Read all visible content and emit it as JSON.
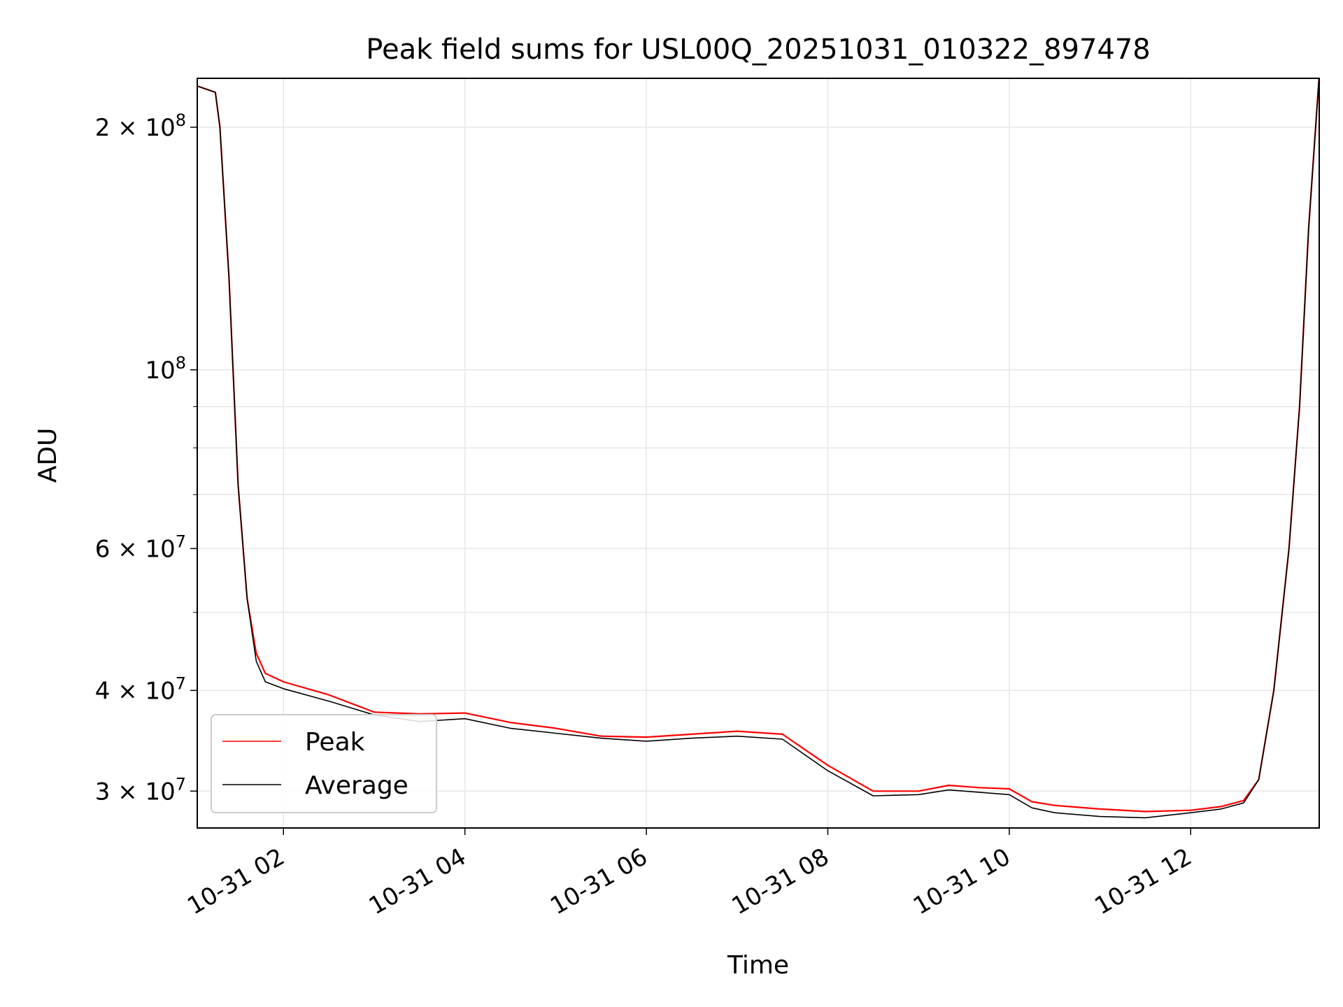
{
  "chart_data": {
    "type": "line",
    "title": "Peak field sums for USL00Q_20251031_010322_897478",
    "xlabel": "Time",
    "ylabel": "ADU",
    "yscale": "log",
    "xlim": [
      "2025-10-31T01:03",
      "2025-10-31T13:25"
    ],
    "ylim": [
      27000000,
      230000000
    ],
    "grid": true,
    "legend_position": "lower-left",
    "x_ticks": [
      {
        "t": "2025-10-31T02:00",
        "label": "10-31 02"
      },
      {
        "t": "2025-10-31T04:00",
        "label": "10-31 04"
      },
      {
        "t": "2025-10-31T06:00",
        "label": "10-31 06"
      },
      {
        "t": "2025-10-31T08:00",
        "label": "10-31 08"
      },
      {
        "t": "2025-10-31T10:00",
        "label": "10-31 10"
      },
      {
        "t": "2025-10-31T12:00",
        "label": "10-31 12"
      }
    ],
    "y_ticks": [
      {
        "v": 30000000,
        "base": "3",
        "exp": "7"
      },
      {
        "v": 40000000,
        "base": "4",
        "exp": "7"
      },
      {
        "v": 60000000,
        "base": "6",
        "exp": "7"
      },
      {
        "v": 100000000,
        "base": "",
        "exp": "8"
      },
      {
        "v": 200000000,
        "base": "2",
        "exp": "8"
      }
    ],
    "y_minor_ticks": [
      50000000,
      70000000,
      80000000,
      90000000
    ],
    "series": [
      {
        "name": "Peak",
        "color": "#ff0000",
        "x": [
          "2025-10-31T01:03",
          "2025-10-31T01:15",
          "2025-10-31T01:18",
          "2025-10-31T01:24",
          "2025-10-31T01:30",
          "2025-10-31T01:36",
          "2025-10-31T01:42",
          "2025-10-31T01:48",
          "2025-10-31T02:00",
          "2025-10-31T02:30",
          "2025-10-31T03:00",
          "2025-10-31T03:30",
          "2025-10-31T04:00",
          "2025-10-31T04:30",
          "2025-10-31T05:00",
          "2025-10-31T05:30",
          "2025-10-31T06:00",
          "2025-10-31T06:30",
          "2025-10-31T07:00",
          "2025-10-31T07:30",
          "2025-10-31T08:00",
          "2025-10-31T08:30",
          "2025-10-31T09:00",
          "2025-10-31T09:20",
          "2025-10-31T09:40",
          "2025-10-31T10:00",
          "2025-10-31T10:15",
          "2025-10-31T10:30",
          "2025-10-31T11:00",
          "2025-10-31T11:30",
          "2025-10-31T12:00",
          "2025-10-31T12:20",
          "2025-10-31T12:35",
          "2025-10-31T12:45",
          "2025-10-31T12:55",
          "2025-10-31T13:05",
          "2025-10-31T13:12",
          "2025-10-31T13:18",
          "2025-10-31T13:25"
        ],
        "values": [
          225000000,
          221000000,
          200000000,
          130000000,
          72000000,
          52000000,
          44500000,
          42000000,
          41000000,
          39500000,
          37600000,
          37400000,
          37500000,
          36500000,
          35900000,
          35100000,
          35000000,
          35300000,
          35600000,
          35300000,
          32300000,
          30000000,
          30000000,
          30500000,
          30300000,
          30200000,
          29100000,
          28800000,
          28500000,
          28300000,
          28400000,
          28700000,
          29200000,
          31000000,
          40000000,
          60000000,
          90000000,
          150000000,
          232000000
        ]
      },
      {
        "name": "Average",
        "color": "#000000",
        "x": [
          "2025-10-31T01:03",
          "2025-10-31T01:15",
          "2025-10-31T01:18",
          "2025-10-31T01:24",
          "2025-10-31T01:30",
          "2025-10-31T01:36",
          "2025-10-31T01:42",
          "2025-10-31T01:48",
          "2025-10-31T02:00",
          "2025-10-31T02:30",
          "2025-10-31T03:00",
          "2025-10-31T03:30",
          "2025-10-31T04:00",
          "2025-10-31T04:30",
          "2025-10-31T05:00",
          "2025-10-31T05:30",
          "2025-10-31T06:00",
          "2025-10-31T06:30",
          "2025-10-31T07:00",
          "2025-10-31T07:30",
          "2025-10-31T08:00",
          "2025-10-31T08:30",
          "2025-10-31T09:00",
          "2025-10-31T09:20",
          "2025-10-31T09:40",
          "2025-10-31T10:00",
          "2025-10-31T10:15",
          "2025-10-31T10:30",
          "2025-10-31T11:00",
          "2025-10-31T11:30",
          "2025-10-31T12:00",
          "2025-10-31T12:20",
          "2025-10-31T12:35",
          "2025-10-31T12:45",
          "2025-10-31T12:55",
          "2025-10-31T13:05",
          "2025-10-31T13:12",
          "2025-10-31T13:18",
          "2025-10-31T13:25"
        ],
        "values": [
          225000000,
          221000000,
          200000000,
          130000000,
          72000000,
          52000000,
          43500000,
          41000000,
          40200000,
          38800000,
          37300000,
          36600000,
          36900000,
          35900000,
          35400000,
          34900000,
          34600000,
          34900000,
          35100000,
          34800000,
          31800000,
          29600000,
          29700000,
          30100000,
          29900000,
          29700000,
          28600000,
          28200000,
          27900000,
          27800000,
          28200000,
          28500000,
          29000000,
          31000000,
          40000000,
          60000000,
          90000000,
          150000000,
          232000000
        ]
      }
    ]
  }
}
